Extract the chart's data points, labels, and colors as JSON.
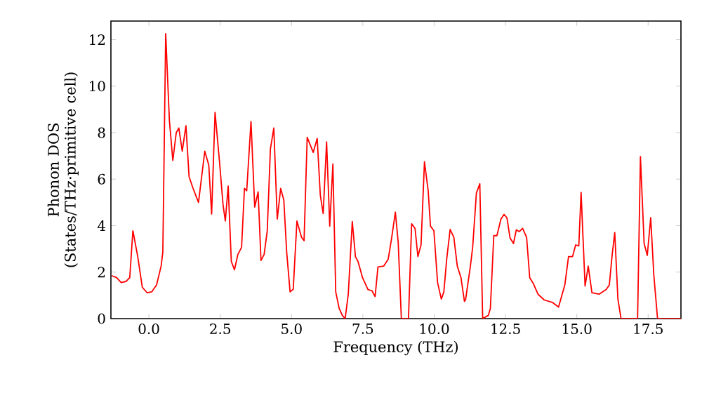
{
  "chart_data": {
    "type": "line",
    "xlabel": "Frequency (THz)",
    "ylabel": "Phonon DOS (States/THz·primitive cell)",
    "xlim": [
      -1.33,
      18.65
    ],
    "ylim": [
      0,
      12.8
    ],
    "xticks": [
      {
        "value": 0,
        "label": "0.0"
      },
      {
        "value": 2.5,
        "label": "2.5"
      },
      {
        "value": 5,
        "label": "5.0"
      },
      {
        "value": 7.5,
        "label": "7.5"
      },
      {
        "value": 10,
        "label": "10.0"
      },
      {
        "value": 12.5,
        "label": "12.5"
      },
      {
        "value": 15,
        "label": "15.0"
      },
      {
        "value": 17.5,
        "label": "17.5"
      }
    ],
    "yticks": [
      0,
      2,
      4,
      6,
      8,
      10,
      12
    ],
    "marker": "none",
    "line_style": "solid",
    "series": [
      {
        "color": "#ff0000",
        "x": [
          -1.3,
          -1.13,
          -0.97,
          -0.8,
          -0.67,
          -0.56,
          -0.39,
          -0.23,
          -0.06,
          0.1,
          0.27,
          0.43,
          0.49,
          0.59,
          0.72,
          0.84,
          0.96,
          1.05,
          1.17,
          1.3,
          1.41,
          1.55,
          1.74,
          1.96,
          2.1,
          2.2,
          2.32,
          2.48,
          2.6,
          2.68,
          2.78,
          2.89,
          3.0,
          3.12,
          3.25,
          3.35,
          3.43,
          3.58,
          3.71,
          3.83,
          3.93,
          4.04,
          4.15,
          4.26,
          4.38,
          4.5,
          4.62,
          4.73,
          4.83,
          4.95,
          5.06,
          5.19,
          5.35,
          5.44,
          5.55,
          5.76,
          5.9,
          6.01,
          6.11,
          6.23,
          6.34,
          6.45,
          6.55,
          6.67,
          6.78,
          6.88,
          6.99,
          7.13,
          7.24,
          7.33,
          7.49,
          7.68,
          7.82,
          7.93,
          8.03,
          8.23,
          8.39,
          8.51,
          8.64,
          8.74,
          8.85,
          9.1,
          9.21,
          9.33,
          9.43,
          9.54,
          9.66,
          9.79,
          9.87,
          9.99,
          10.12,
          10.25,
          10.34,
          10.44,
          10.56,
          10.69,
          10.81,
          10.94,
          11.06,
          11.1,
          11.27,
          11.35,
          11.48,
          11.6,
          11.7,
          11.9,
          11.97,
          12.09,
          12.2,
          12.34,
          12.45,
          12.55,
          12.66,
          12.78,
          12.88,
          12.98,
          13.1,
          13.24,
          13.35,
          13.48,
          13.64,
          13.86,
          14.14,
          14.36,
          14.58,
          14.71,
          14.85,
          14.96,
          15.07,
          15.15,
          15.29,
          15.4,
          15.53,
          15.78,
          16.03,
          16.14,
          16.24,
          16.33,
          16.44,
          16.55,
          17.13,
          17.23,
          17.36,
          17.47,
          17.59,
          17.7,
          17.83,
          18.65
        ],
        "values": [
          1.85,
          1.76,
          1.55,
          1.6,
          1.76,
          3.78,
          2.67,
          1.35,
          1.11,
          1.15,
          1.45,
          2.26,
          2.87,
          12.26,
          8.52,
          6.8,
          8.0,
          8.2,
          7.2,
          8.3,
          6.1,
          5.6,
          5.0,
          7.2,
          6.6,
          4.5,
          8.87,
          6.7,
          4.9,
          4.2,
          5.7,
          2.46,
          2.1,
          2.76,
          3.07,
          5.6,
          5.5,
          8.48,
          4.8,
          5.45,
          2.5,
          2.76,
          3.78,
          7.3,
          8.2,
          4.28,
          5.6,
          5.1,
          2.87,
          1.15,
          1.26,
          4.2,
          3.5,
          3.35,
          7.8,
          7.15,
          7.75,
          5.3,
          4.52,
          7.6,
          3.98,
          6.65,
          1.15,
          0.44,
          0.14,
          0,
          1.05,
          4.18,
          2.67,
          2.46,
          1.76,
          1.25,
          1.2,
          0.95,
          2.22,
          2.26,
          2.56,
          3.47,
          4.58,
          3.27,
          0,
          0,
          4.08,
          3.88,
          2.67,
          3.17,
          6.75,
          5.5,
          3.98,
          3.78,
          1.55,
          0.84,
          1.15,
          2.56,
          3.84,
          3.5,
          2.26,
          1.76,
          0.74,
          0.8,
          2.26,
          3.07,
          5.4,
          5.8,
          0,
          0.14,
          0.44,
          3.57,
          3.57,
          4.28,
          4.48,
          4.34,
          3.47,
          3.23,
          3.82,
          3.74,
          3.88,
          3.5,
          1.76,
          1.5,
          1.05,
          0.8,
          0.7,
          0.5,
          1.45,
          2.67,
          2.67,
          3.17,
          3.13,
          5.43,
          1.4,
          2.26,
          1.11,
          1.05,
          1.25,
          1.45,
          2.76,
          3.7,
          0.84,
          0,
          0,
          6.97,
          3.23,
          2.72,
          4.34,
          1.86,
          0,
          0
        ]
      }
    ]
  }
}
